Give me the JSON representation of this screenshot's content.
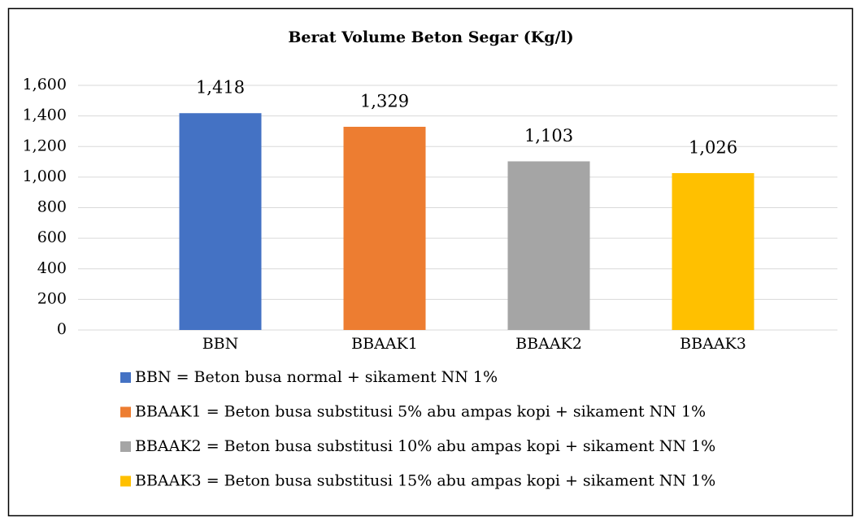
{
  "chart_data": {
    "type": "bar",
    "title": "Berat Volume Beton Segar (Kg/l)",
    "categories": [
      "BBN",
      "BBAAK1",
      "BBAAK2",
      "BBAAK3"
    ],
    "values": [
      1418,
      1329,
      1103,
      1026
    ],
    "value_labels": [
      "1,418",
      "1,329",
      "1,103",
      "1,026"
    ],
    "colors": [
      "#4472c4",
      "#ed7d31",
      "#a5a5a5",
      "#ffc000"
    ],
    "ylim": [
      0,
      1600
    ],
    "yticks": [
      0,
      200,
      400,
      600,
      800,
      {
        "value": 1000,
        "label": "1,000"
      },
      {
        "value": 1200,
        "label": "1,200"
      },
      {
        "value": 1400,
        "label": "1,400"
      },
      {
        "value": 1600,
        "label": "1,600"
      }
    ],
    "grid": true,
    "legend": [
      {
        "label": "BBN  = Beton busa normal + sikament NN 1%",
        "color": "#4472c4"
      },
      {
        "label": "BBAAK1  = Beton busa substitusi 5% abu ampas kopi + sikament NN 1%",
        "color": "#ed7d31"
      },
      {
        "label": "BBAAK2  = Beton busa substitusi 10% abu ampas kopi + sikament NN 1%",
        "color": "#a5a5a5"
      },
      {
        "label": "BBAAK3  = Beton busa substitusi 15% abu ampas kopi + sikament NN 1%",
        "color": "#ffc000"
      }
    ]
  }
}
